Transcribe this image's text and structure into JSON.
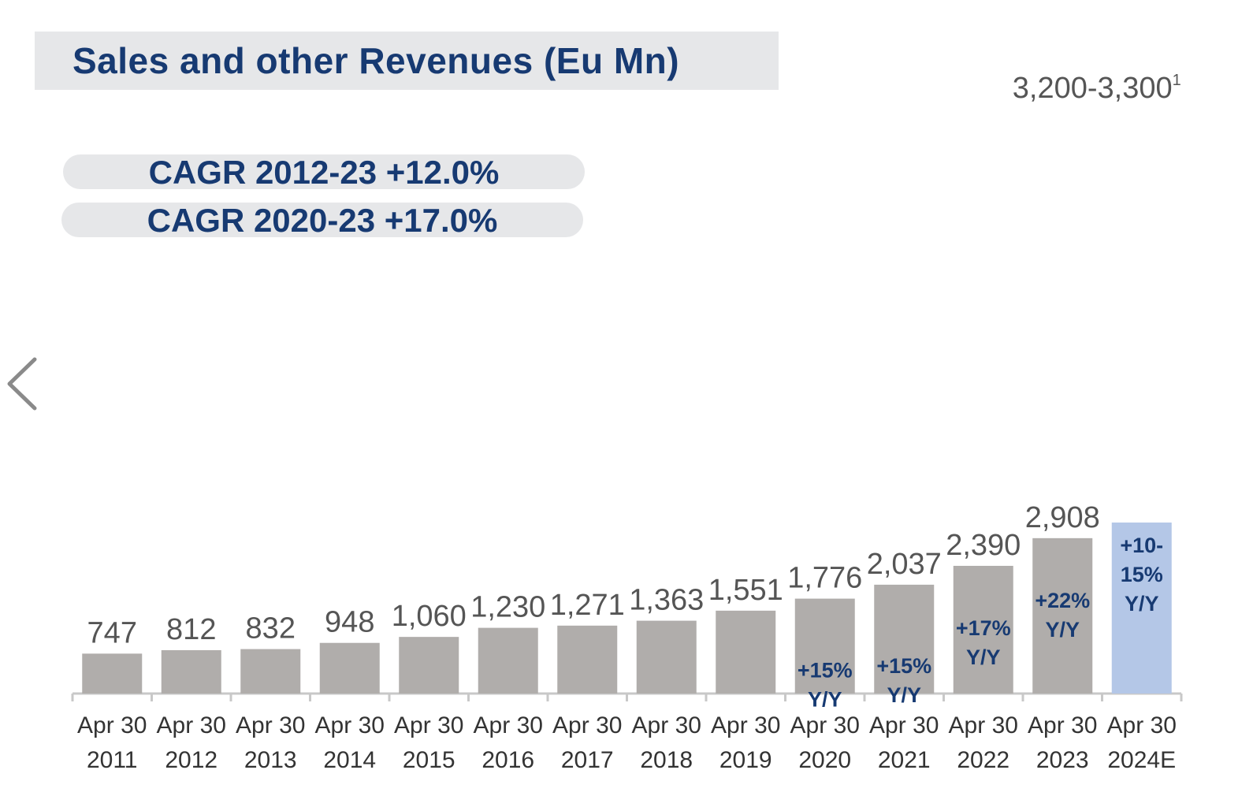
{
  "chart_data": {
    "type": "bar",
    "title": "Sales and other Revenues (Eu Mn)",
    "categories": [
      [
        "Apr 30",
        "2011"
      ],
      [
        "Apr 30",
        "2012"
      ],
      [
        "Apr 30",
        "2013"
      ],
      [
        "Apr 30",
        "2014"
      ],
      [
        "Apr 30",
        "2015"
      ],
      [
        "Apr 30",
        "2016"
      ],
      [
        "Apr 30",
        "2017"
      ],
      [
        "Apr 30",
        "2018"
      ],
      [
        "Apr 30",
        "2019"
      ],
      [
        "Apr 30",
        "2020"
      ],
      [
        "Apr 30",
        "2021"
      ],
      [
        "Apr 30",
        "2022"
      ],
      [
        "Apr 30",
        "2023"
      ],
      [
        "Apr 30",
        "2024E"
      ]
    ],
    "values": [
      747,
      812,
      832,
      948,
      1060,
      1230,
      1271,
      1363,
      1551,
      1776,
      2037,
      2390,
      2908,
      3200
    ],
    "value_labels": [
      "747",
      "812",
      "832",
      "948",
      "1,060",
      "1,230",
      "1,271",
      "1,363",
      "1,551",
      "1,776",
      "2,037",
      "2,390",
      "2,908",
      ""
    ],
    "estimate_label": "3,200-3,300",
    "estimate_footnote": "1",
    "growth_labels": [
      null,
      null,
      null,
      null,
      null,
      null,
      null,
      null,
      null,
      [
        "+15%",
        "Y/Y"
      ],
      [
        "+15%",
        "Y/Y"
      ],
      [
        "+17%",
        "Y/Y"
      ],
      [
        "+22%",
        "Y/Y"
      ],
      [
        "+10-",
        "15%",
        "Y/Y"
      ]
    ],
    "colors": {
      "bar": "#b0adab",
      "estimate_bar": "#b4c7e7",
      "axis": "#c8c8c8",
      "accent_text": "#173a72"
    },
    "xlabel": "",
    "ylabel": "",
    "grid": false
  },
  "cagr": [
    "CAGR 2012-23 +12.0%",
    "CAGR 2020-23 +17.0%"
  ],
  "nav": {
    "prev_icon": "chevron-left-icon"
  }
}
